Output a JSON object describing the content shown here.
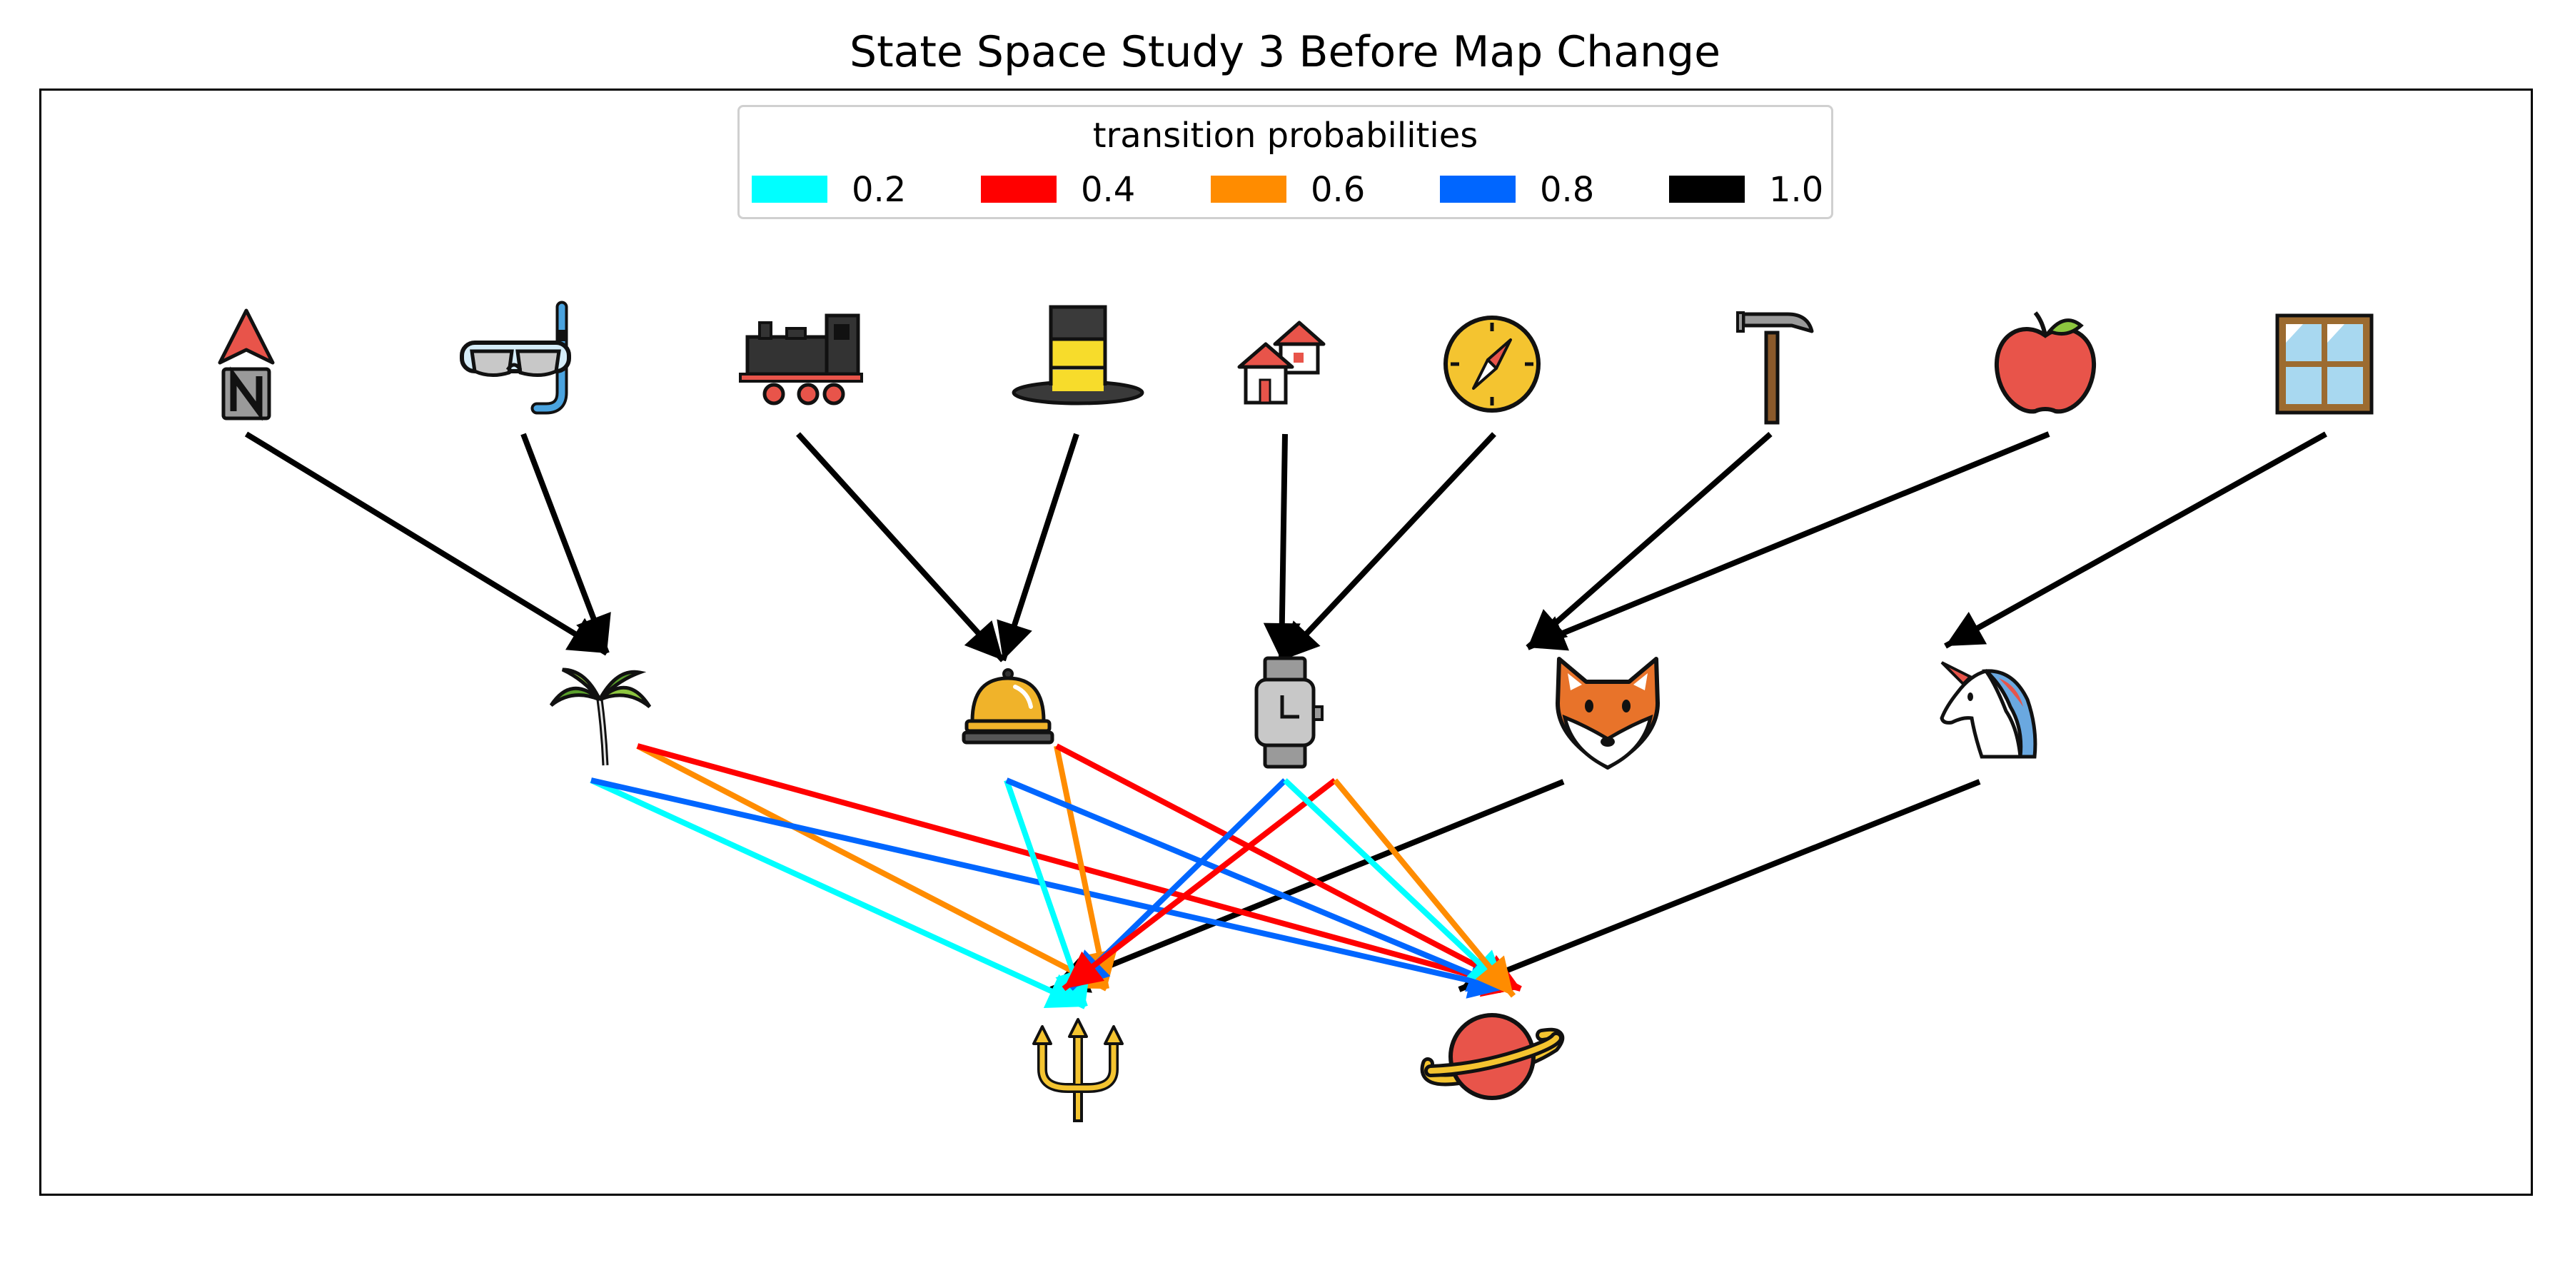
{
  "title": "State Space Study 3 Before Map Change",
  "legend": {
    "title": "transition probabilities",
    "items": [
      {
        "label": "0.2",
        "color": "#00FFFF"
      },
      {
        "label": "0.4",
        "color": "#FF0000"
      },
      {
        "label": "0.6",
        "color": "#FF8C00"
      },
      {
        "label": "0.8",
        "color": "#0066FF"
      },
      {
        "label": "1.0",
        "color": "#000000"
      }
    ]
  },
  "nodes": {
    "top": [
      "north-arrow",
      "snorkel-mask",
      "locomotive",
      "top-hat",
      "houses",
      "compass",
      "hammer",
      "apple",
      "window"
    ],
    "middle": [
      "palm-tree",
      "bellhop-bell",
      "wristwatch",
      "fox",
      "unicorn"
    ],
    "bottom": [
      "trident",
      "ringed-planet"
    ]
  },
  "edges": [
    {
      "from": "north-arrow",
      "to": "palm-tree",
      "p": 1.0
    },
    {
      "from": "snorkel-mask",
      "to": "palm-tree",
      "p": 1.0
    },
    {
      "from": "locomotive",
      "to": "bellhop-bell",
      "p": 1.0
    },
    {
      "from": "top-hat",
      "to": "bellhop-bell",
      "p": 1.0
    },
    {
      "from": "houses",
      "to": "wristwatch",
      "p": 1.0
    },
    {
      "from": "compass",
      "to": "wristwatch",
      "p": 1.0
    },
    {
      "from": "hammer",
      "to": "fox",
      "p": 1.0
    },
    {
      "from": "apple",
      "to": "fox",
      "p": 1.0
    },
    {
      "from": "window",
      "to": "unicorn",
      "p": 1.0
    },
    {
      "from": "fox",
      "to": "trident",
      "p": 1.0
    },
    {
      "from": "unicorn",
      "to": "ringed-planet",
      "p": 1.0
    },
    {
      "from": "palm-tree",
      "to": "trident",
      "p": 0.2
    },
    {
      "from": "palm-tree",
      "to": "trident",
      "p": 0.6
    },
    {
      "from": "palm-tree",
      "to": "ringed-planet",
      "p": 0.4
    },
    {
      "from": "palm-tree",
      "to": "ringed-planet",
      "p": 0.8
    },
    {
      "from": "bellhop-bell",
      "to": "trident",
      "p": 0.2
    },
    {
      "from": "bellhop-bell",
      "to": "trident",
      "p": 0.6
    },
    {
      "from": "bellhop-bell",
      "to": "ringed-planet",
      "p": 0.4
    },
    {
      "from": "bellhop-bell",
      "to": "ringed-planet",
      "p": 0.8
    },
    {
      "from": "wristwatch",
      "to": "trident",
      "p": 0.8
    },
    {
      "from": "wristwatch",
      "to": "trident",
      "p": 0.4
    },
    {
      "from": "wristwatch",
      "to": "ringed-planet",
      "p": 0.2
    },
    {
      "from": "wristwatch",
      "to": "ringed-planet",
      "p": 0.6
    }
  ]
}
